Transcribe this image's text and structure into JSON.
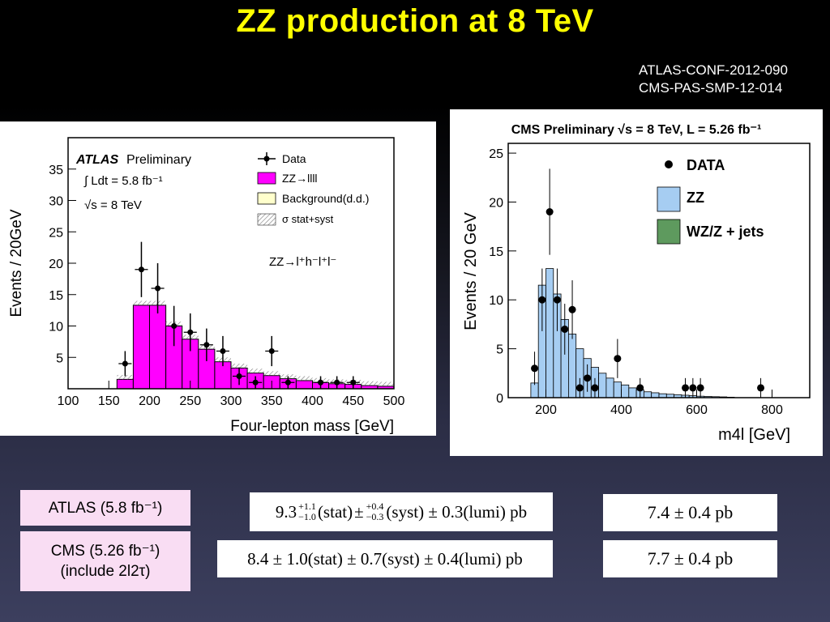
{
  "slide": {
    "title": "ZZ production at 8 TeV",
    "references": [
      "ATLAS-CONF-2012-090",
      "CMS-PAS-SMP-12-014"
    ]
  },
  "results": {
    "atlas_label": "ATLAS (5.8 fb⁻¹)",
    "cms_label_line1": "CMS (5.26 fb⁻¹)",
    "cms_label_line2": "(include 2l2τ)",
    "atlas_formula": "9.3 +1.1/−1.0 (stat) ± +0.4/−0.3 (syst) ± 0.3(lumi) pb",
    "atlas_central": "9.3",
    "atlas_stat_up": "+1.1",
    "atlas_stat_down": "−1.0",
    "atlas_syst_up": "+0.4",
    "atlas_syst_down": "−0.3",
    "atlas_stat_text": "(stat)",
    "atlas_pm": "±",
    "atlas_syst_tail": "(syst) ± 0.3(lumi) pb",
    "cms_formula": "8.4 ± 1.0(stat) ± 0.7(syst) ± 0.4(lumi) pb",
    "atlas_theory": "7.4 ± 0.4  pb",
    "cms_theory": "7.7 ± 0.4  pb"
  },
  "chart_data": [
    {
      "type": "bar",
      "title": "ATLAS Preliminary",
      "xlabel": "Four-lepton mass [GeV]",
      "ylabel": "Events / 20GeV",
      "xlim": [
        100,
        500
      ],
      "ylim": [
        0,
        40
      ],
      "xticks": [
        100,
        150,
        200,
        250,
        300,
        350,
        400,
        450,
        500
      ],
      "yticks": [
        5,
        10,
        15,
        20,
        25,
        30,
        35
      ],
      "annotations": {
        "brand": "ATLAS",
        "preliminary": "Preliminary",
        "lumi": "∫ Ldt = 5.8 fb⁻¹",
        "energy": "√s = 8 TeV",
        "channel": "ZZ→l⁺h⁻l⁺l⁻"
      },
      "legend": {
        "placement": "top-right",
        "entries": [
          "Data",
          "ZZ→llll",
          "Background(d.d.)",
          "σ stat+syst"
        ]
      },
      "colors": {
        "signal": "#ff00ff",
        "background": "#ffffcc",
        "band": "#888888",
        "data": "#000000"
      },
      "bins": [
        {
          "lo": 160,
          "hi": 180,
          "signal": 1.5
        },
        {
          "lo": 180,
          "hi": 200,
          "signal": 13.3
        },
        {
          "lo": 200,
          "hi": 220,
          "signal": 13.3
        },
        {
          "lo": 220,
          "hi": 240,
          "signal": 10.0
        },
        {
          "lo": 240,
          "hi": 260,
          "signal": 7.9
        },
        {
          "lo": 260,
          "hi": 280,
          "signal": 6.3
        },
        {
          "lo": 280,
          "hi": 300,
          "signal": 4.3
        },
        {
          "lo": 300,
          "hi": 320,
          "signal": 3.3
        },
        {
          "lo": 320,
          "hi": 340,
          "signal": 2.5
        },
        {
          "lo": 340,
          "hi": 360,
          "signal": 2.1
        },
        {
          "lo": 360,
          "hi": 380,
          "signal": 1.6
        },
        {
          "lo": 380,
          "hi": 400,
          "signal": 1.3
        },
        {
          "lo": 400,
          "hi": 420,
          "signal": 1.0
        },
        {
          "lo": 420,
          "hi": 440,
          "signal": 0.8
        },
        {
          "lo": 440,
          "hi": 460,
          "signal": 0.7
        },
        {
          "lo": 460,
          "hi": 480,
          "signal": 0.5
        },
        {
          "lo": 480,
          "hi": 500,
          "signal": 0.4
        }
      ],
      "data_points": [
        {
          "x": 170,
          "y": 4,
          "err": 2
        },
        {
          "x": 190,
          "y": 19,
          "err": 4.4
        },
        {
          "x": 210,
          "y": 16,
          "err": 4
        },
        {
          "x": 230,
          "y": 10,
          "err": 3.2
        },
        {
          "x": 250,
          "y": 9,
          "err": 3
        },
        {
          "x": 270,
          "y": 7,
          "err": 2.6
        },
        {
          "x": 290,
          "y": 6,
          "err": 2.4
        },
        {
          "x": 310,
          "y": 2,
          "err": 1.4
        },
        {
          "x": 330,
          "y": 1,
          "err": 1
        },
        {
          "x": 350,
          "y": 6,
          "err": 2.4
        },
        {
          "x": 370,
          "y": 1,
          "err": 1
        },
        {
          "x": 410,
          "y": 1,
          "err": 1
        },
        {
          "x": 430,
          "y": 1,
          "err": 1
        },
        {
          "x": 450,
          "y": 1,
          "err": 1
        }
      ]
    },
    {
      "type": "bar",
      "title": "CMS Preliminary √s = 8 TeV, L = 5.26 fb⁻¹",
      "xlabel": "m4l [GeV]",
      "ylabel": "Events / 20 GeV",
      "xlim": [
        100,
        900
      ],
      "ylim": [
        0,
        26
      ],
      "xticks": [
        200,
        400,
        600,
        800
      ],
      "yticks": [
        0,
        5,
        10,
        15,
        20,
        25
      ],
      "legend": {
        "placement": "top-right",
        "entries": [
          "DATA",
          "ZZ",
          "WZ/Z + jets"
        ]
      },
      "colors": {
        "zz": "#a6cdf2",
        "wz": "#5e9a5e",
        "data": "#000000"
      },
      "bins": [
        {
          "lo": 160,
          "hi": 180,
          "zz": 1.5
        },
        {
          "lo": 180,
          "hi": 200,
          "zz": 11.5
        },
        {
          "lo": 200,
          "hi": 220,
          "zz": 13.2
        },
        {
          "lo": 220,
          "hi": 240,
          "zz": 10.6
        },
        {
          "lo": 240,
          "hi": 260,
          "zz": 8.0
        },
        {
          "lo": 260,
          "hi": 280,
          "zz": 6.5
        },
        {
          "lo": 280,
          "hi": 300,
          "zz": 5.0
        },
        {
          "lo": 300,
          "hi": 320,
          "zz": 4.0
        },
        {
          "lo": 320,
          "hi": 340,
          "zz": 3.1
        },
        {
          "lo": 340,
          "hi": 360,
          "zz": 2.5
        },
        {
          "lo": 360,
          "hi": 380,
          "zz": 2.0
        },
        {
          "lo": 380,
          "hi": 400,
          "zz": 1.6
        },
        {
          "lo": 400,
          "hi": 420,
          "zz": 1.3
        },
        {
          "lo": 420,
          "hi": 440,
          "zz": 1.0
        },
        {
          "lo": 440,
          "hi": 460,
          "zz": 0.8
        },
        {
          "lo": 460,
          "hi": 480,
          "zz": 0.6
        },
        {
          "lo": 480,
          "hi": 500,
          "zz": 0.5
        },
        {
          "lo": 500,
          "hi": 520,
          "zz": 0.4
        },
        {
          "lo": 520,
          "hi": 540,
          "zz": 0.35
        },
        {
          "lo": 540,
          "hi": 560,
          "zz": 0.3
        },
        {
          "lo": 560,
          "hi": 580,
          "zz": 0.25
        },
        {
          "lo": 580,
          "hi": 600,
          "zz": 0.2
        },
        {
          "lo": 600,
          "hi": 620,
          "zz": 0.15
        },
        {
          "lo": 620,
          "hi": 640,
          "zz": 0.12
        },
        {
          "lo": 640,
          "hi": 660,
          "zz": 0.1
        },
        {
          "lo": 660,
          "hi": 680,
          "zz": 0.08
        },
        {
          "lo": 680,
          "hi": 700,
          "zz": 0.05
        }
      ],
      "data_points": [
        {
          "x": 170,
          "y": 3,
          "err": 1.7
        },
        {
          "x": 190,
          "y": 10,
          "err": 3.2
        },
        {
          "x": 210,
          "y": 19,
          "err": 4.4
        },
        {
          "x": 230,
          "y": 10,
          "err": 3.2
        },
        {
          "x": 250,
          "y": 7,
          "err": 2.6
        },
        {
          "x": 270,
          "y": 9,
          "err": 3
        },
        {
          "x": 290,
          "y": 1,
          "err": 1
        },
        {
          "x": 310,
          "y": 2,
          "err": 1.4
        },
        {
          "x": 330,
          "y": 1,
          "err": 1
        },
        {
          "x": 390,
          "y": 4,
          "err": 2
        },
        {
          "x": 450,
          "y": 1,
          "err": 1
        },
        {
          "x": 570,
          "y": 1,
          "err": 1
        },
        {
          "x": 590,
          "y": 1,
          "err": 1
        },
        {
          "x": 610,
          "y": 1,
          "err": 1
        },
        {
          "x": 770,
          "y": 1,
          "err": 1
        }
      ]
    }
  ]
}
